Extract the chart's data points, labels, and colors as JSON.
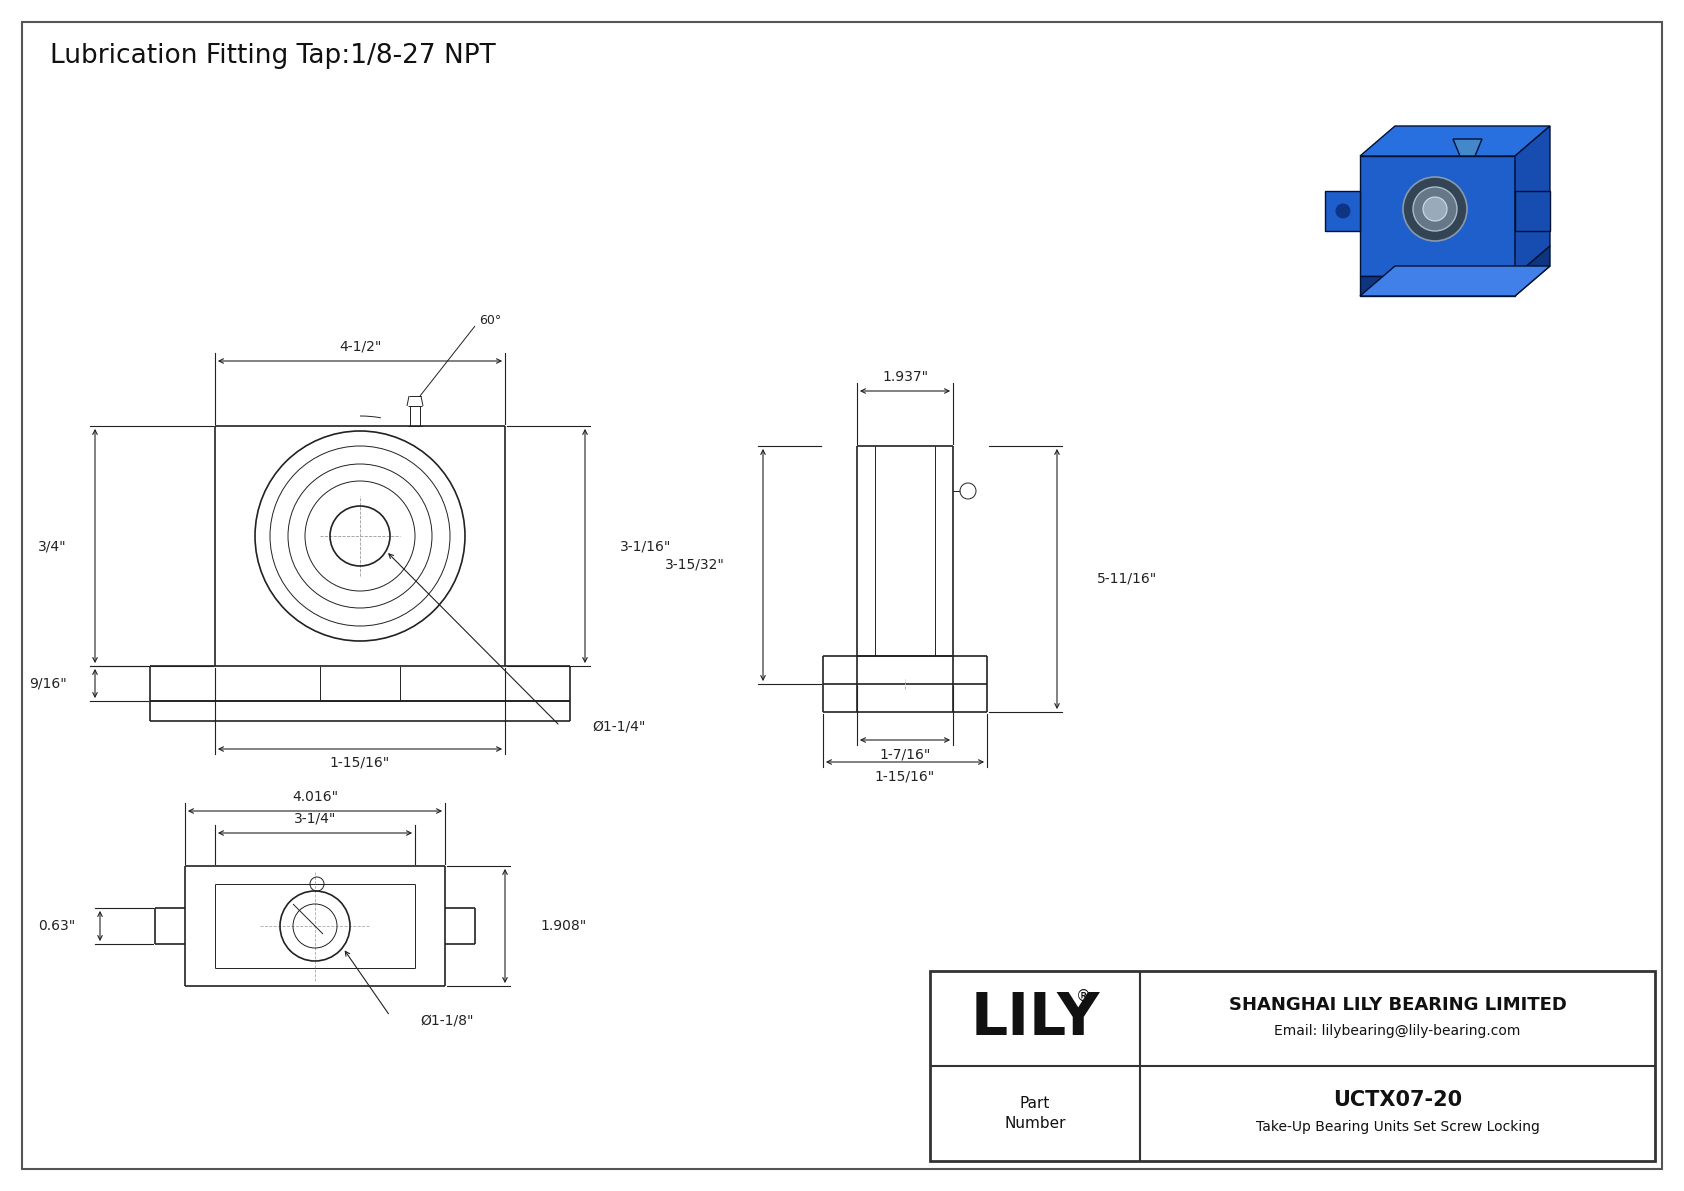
{
  "title": "Lubrication Fitting Tap:1/8-27 NPT",
  "bg_color": "#ffffff",
  "line_color": "#222222",
  "company_name": "SHANGHAI LILY BEARING LIMITED",
  "company_email": "Email: lilybearing@lily-bearing.com",
  "part_number_label": "Part\nNumber",
  "part_number": "UCTX07-20",
  "part_description": "Take-Up Bearing Units Set Screw Locking",
  "lily_text": "LILY",
  "front_view_dims": {
    "width_top": "4-1/2\"",
    "height_right": "3-1/16\"",
    "height_left": "3/4\"",
    "height_bottom_left": "9/16\"",
    "width_bottom": "1-15/16\"",
    "dia_label": "Ø1-1/4\"",
    "angle_label": "60°"
  },
  "side_view_dims": {
    "width_top": "1.937\"",
    "height_left": "3-15/32\"",
    "height_right": "5-11/16\"",
    "width_bottom1": "1-7/16\"",
    "width_bottom2": "1-15/16\""
  },
  "bottom_view_dims": {
    "width_top1": "4.016\"",
    "width_top2": "3-1/4\"",
    "height_right": "1.908\"",
    "height_bottom": "0.63\"",
    "dia_label": "Ø1-1/8\""
  }
}
